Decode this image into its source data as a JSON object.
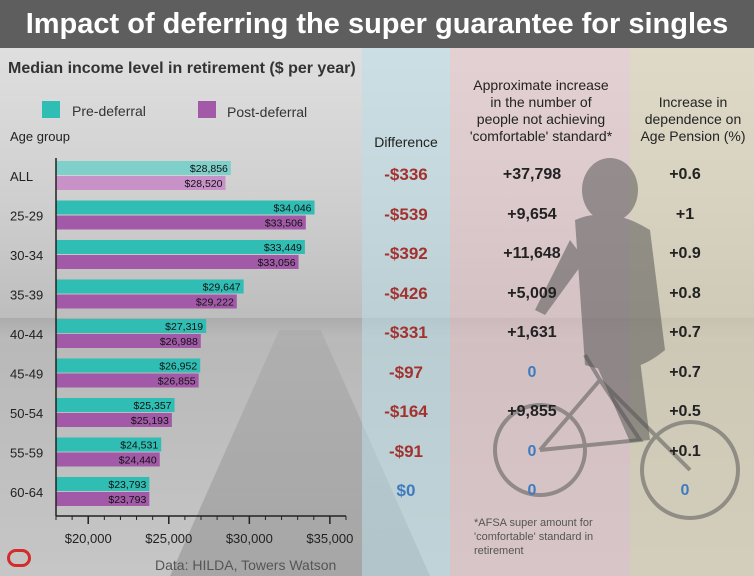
{
  "title": "Impact of deferring the super guarantee for singles",
  "subtitle": "Median income level in retirement ($ per year)",
  "legend": [
    {
      "label": "Pre-deferral",
      "color": "#2fbdb4"
    },
    {
      "label": "Post-deferral",
      "color": "#a25aa8"
    }
  ],
  "age_group_label": "Age group",
  "columns": {
    "difference": {
      "header": "Difference",
      "values": [
        "-$336",
        "-$539",
        "-$392",
        "-$426",
        "-$331",
        "-$97",
        "-$164",
        "-$91",
        "$0"
      ]
    },
    "comfortable": {
      "header_lines": [
        "Approximate increase",
        "in the number of",
        "people not achieving",
        "'comfortable' standard*"
      ],
      "values": [
        "+37,798",
        "+9,654",
        "+11,648",
        "+5,009",
        "+1,631",
        "0",
        "+9,855",
        "0",
        "0"
      ]
    },
    "pension": {
      "header_lines": [
        "Increase in",
        "dependence on",
        "Age Pension (%)"
      ],
      "values": [
        "+0.6",
        "+1",
        "+0.9",
        "+0.8",
        "+0.7",
        "+0.7",
        "+0.5",
        "+0.1",
        "0"
      ]
    }
  },
  "footnote_lines": [
    "*AFSA super amount for",
    "'comfortable' standard in",
    "retirement"
  ],
  "source": "Data: HILDA, Towers Watson",
  "logo": "conversation-logo-icon",
  "chart_data": {
    "type": "bar",
    "orientation": "horizontal",
    "categories": [
      "ALL",
      "25-29",
      "30-34",
      "35-39",
      "40-44",
      "45-49",
      "50-54",
      "55-59",
      "60-64"
    ],
    "series": [
      {
        "name": "Pre-deferral",
        "color": "#2fbdb4",
        "values": [
          28856,
          34046,
          33449,
          29647,
          27319,
          26952,
          25357,
          24531,
          23793
        ],
        "labels": [
          "$28,856",
          "$34,046",
          "$33,449",
          "$29,647",
          "$27,319",
          "$26,952",
          "$25,357",
          "$24,531",
          "$23,793"
        ]
      },
      {
        "name": "Post-deferral",
        "color": "#a25aa8",
        "values": [
          28520,
          33506,
          33056,
          29222,
          26988,
          26855,
          25193,
          24440,
          23793
        ],
        "labels": [
          "$28,520",
          "$33,506",
          "$33,056",
          "$29,222",
          "$26,988",
          "$26,855",
          "$25,193",
          "$24,440",
          "$23,793"
        ]
      }
    ],
    "xlim": [
      18000,
      36000
    ],
    "xticks": [
      20000,
      25000,
      30000,
      35000
    ],
    "xtick_labels": [
      "$20,000",
      "$25,000",
      "$30,000",
      "$35,000"
    ],
    "title": "Median income level in retirement ($ per year)",
    "ylabel": "Age group",
    "grid": false,
    "legend": "top-left"
  }
}
